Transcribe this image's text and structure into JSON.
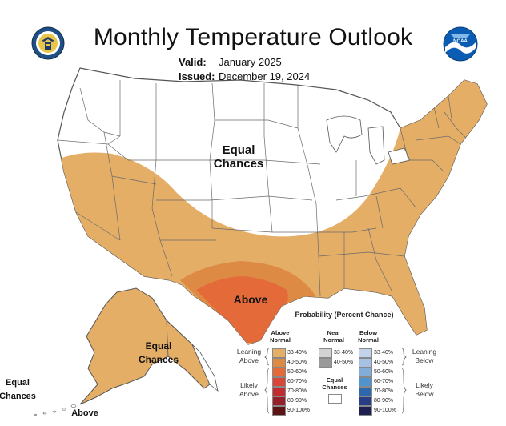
{
  "header": {
    "title": "Monthly Temperature Outlook",
    "valid_label": "Valid:",
    "valid_value": "January 2025",
    "issued_label": "Issued:",
    "issued_value": "December 19, 2024"
  },
  "logos": {
    "left": "department-of-commerce-seal",
    "right": "noaa-logo"
  },
  "map_labels": {
    "conus_equal": "Equal Chances",
    "above": "Above",
    "alaska_equal": "Equal Chances",
    "aleutian_equal": "Equal Chances",
    "alaska_above": "Above"
  },
  "legend": {
    "title": "Probability (Percent Chance)",
    "above_header": "Above Normal",
    "near_header": "Near Normal",
    "below_header": "Below Normal",
    "equal_chances": "Equal Chances",
    "leaning_above": "Leaning Above",
    "likely_above": "Likely Above",
    "leaning_below": "Leaning Below",
    "likely_below": "Likely Below",
    "above_bins": [
      {
        "label": "33-40%",
        "color": "#e5ae67"
      },
      {
        "label": "40-50%",
        "color": "#dd8a45"
      },
      {
        "label": "50-60%",
        "color": "#e46a3a"
      },
      {
        "label": "60-70%",
        "color": "#d8473a"
      },
      {
        "label": "70-80%",
        "color": "#c22b30"
      },
      {
        "label": "80-90%",
        "color": "#96202a"
      },
      {
        "label": "90-100%",
        "color": "#5d1414"
      }
    ],
    "near_bins": [
      {
        "label": "33-40%",
        "color": "#d2d2d2"
      },
      {
        "label": "40-50%",
        "color": "#9a9a9a"
      }
    ],
    "below_bins": [
      {
        "label": "33-40%",
        "color": "#c3d3ec"
      },
      {
        "label": "40-50%",
        "color": "#a6c1e4"
      },
      {
        "label": "50-60%",
        "color": "#82add9"
      },
      {
        "label": "60-70%",
        "color": "#4f93cf"
      },
      {
        "label": "70-80%",
        "color": "#2d68ae"
      },
      {
        "label": "80-90%",
        "color": "#283d85"
      },
      {
        "label": "90-100%",
        "color": "#201f52"
      }
    ],
    "equal_color": "#ffffff"
  },
  "colors": {
    "lean_above": "#e5ae67",
    "above_40_50": "#dd8a45",
    "above_50_60": "#e46a3a",
    "outline": "#555555",
    "state_lines": "#6a6a6a"
  }
}
